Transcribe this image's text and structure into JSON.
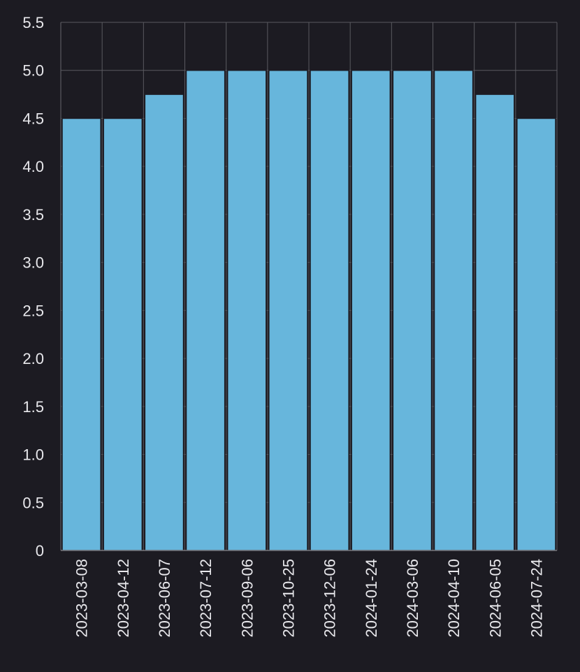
{
  "chart_data": {
    "type": "bar",
    "title": "",
    "xlabel": "",
    "ylabel": "",
    "categories": [
      "2023-03-08",
      "2023-04-12",
      "2023-06-07",
      "2023-07-12",
      "2023-09-06",
      "2023-10-25",
      "2023-12-06",
      "2024-01-24",
      "2024-03-06",
      "2024-04-10",
      "2024-06-05",
      "2024-07-24"
    ],
    "values": [
      4.5,
      4.5,
      4.75,
      5.0,
      5.0,
      5.0,
      5.0,
      5.0,
      5.0,
      5.0,
      4.75,
      4.5
    ],
    "ylim": [
      0,
      5.5
    ],
    "yticks": [
      "0",
      "0.5",
      "1.0",
      "1.5",
      "2.0",
      "2.5",
      "3.0",
      "3.5",
      "4.0",
      "4.5",
      "5.0",
      "5.5"
    ],
    "grid": true,
    "colors": {
      "background": "#1c1b22",
      "bar_fill": "#67b6dc",
      "bar_edge": "#1c1b22",
      "grid": "#5a5a60",
      "text": "#e8e8ec"
    }
  }
}
